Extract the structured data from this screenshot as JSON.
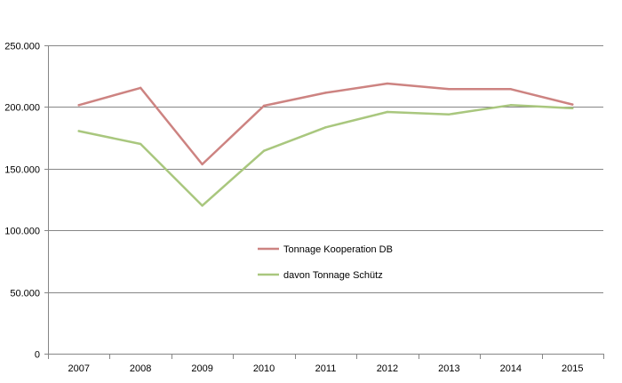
{
  "chart_data": {
    "type": "line",
    "categories": [
      "2007",
      "2008",
      "2009",
      "2010",
      "2011",
      "2012",
      "2013",
      "2014",
      "2015"
    ],
    "y_ticks": [
      "0",
      "50.000",
      "100.000",
      "150.000",
      "200.000",
      "250.000"
    ],
    "ylim": [
      0,
      250000
    ],
    "grid": "horizontal",
    "legend_position": "center",
    "series": [
      {
        "name": "Tonnage Kooperation DB",
        "color": "#c0504d",
        "stroke": "#cd8381",
        "values": [
          201500,
          215500,
          153500,
          201000,
          211500,
          219000,
          214500,
          214500,
          202000
        ]
      },
      {
        "name": "davon Tonnage Schütz",
        "color": "#9bbb59",
        "stroke": "#a9c77e",
        "values": [
          180500,
          170000,
          120000,
          164500,
          183500,
          196000,
          194000,
          201500,
          199000
        ]
      }
    ]
  }
}
